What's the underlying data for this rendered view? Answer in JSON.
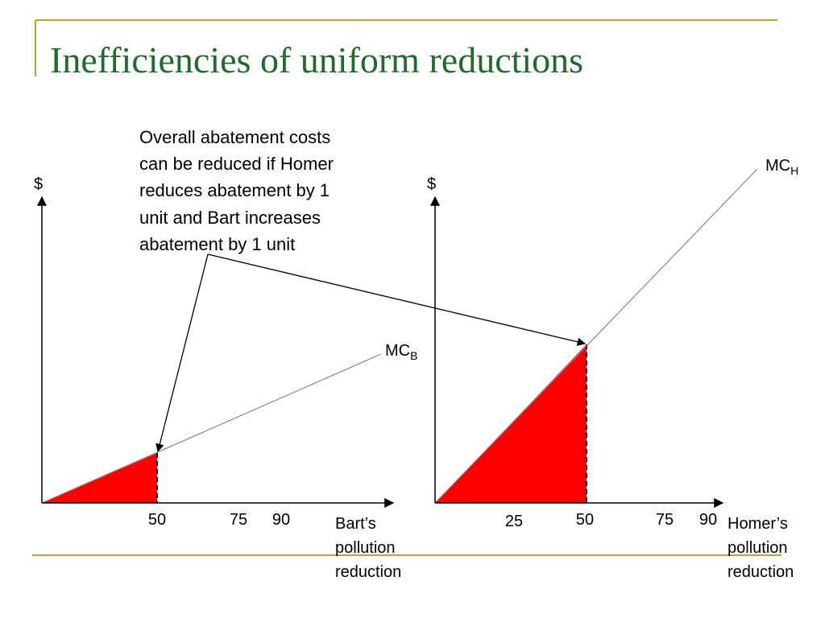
{
  "title": "Inefficiencies of uniform reductions",
  "annotation": [
    "Overall abatement costs",
    "can be reduced if Homer",
    "reduces abatement by 1",
    "unit and Bart increases",
    "abatement by 1 unit"
  ],
  "left_panel": {
    "y_label": "$",
    "curve_label": "MC",
    "curve_subscript": "B",
    "x_ticks": [
      "50",
      "75",
      "90"
    ],
    "x_label": [
      "Bart’s",
      "pollution",
      "reduction"
    ]
  },
  "right_panel": {
    "y_label": "$",
    "curve_label": "MC",
    "curve_subscript": "H",
    "x_ticks": [
      "25",
      "50",
      "75",
      "90"
    ],
    "x_label": [
      "Homer’s",
      "pollution",
      "reduction"
    ]
  }
}
